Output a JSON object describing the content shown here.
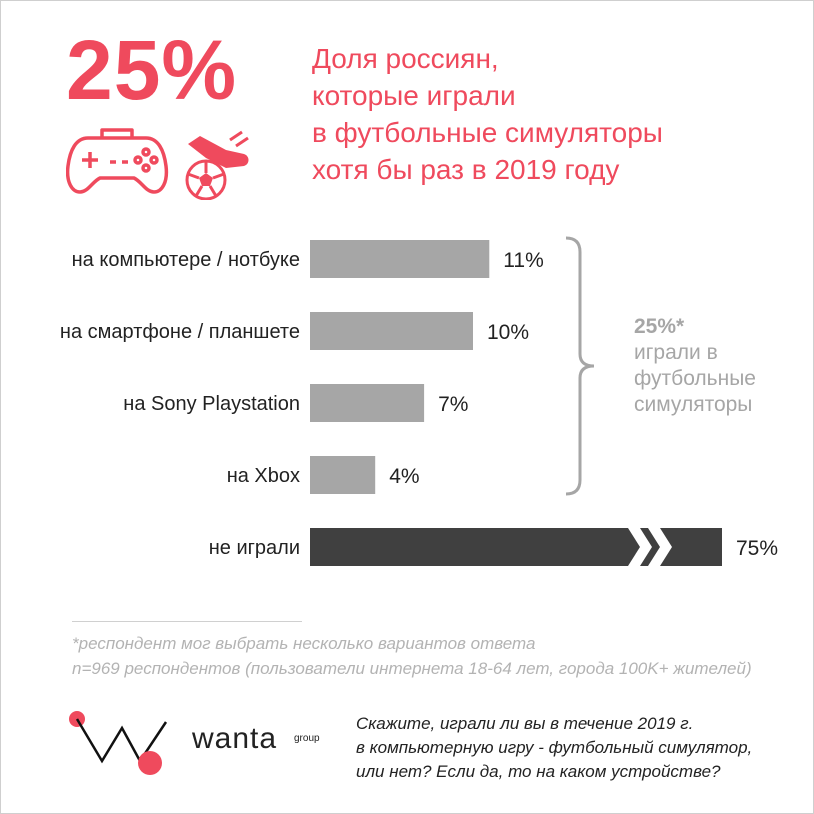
{
  "header": {
    "big_percent": "25%",
    "title_lines": [
      "Доля россиян,",
      "которые играли",
      "в футбольные симуляторы",
      "хотя бы раз в 2019 году"
    ]
  },
  "icons": [
    "gamepad-icon",
    "football-boot-icon",
    "soccer-ball-icon"
  ],
  "colors": {
    "accent": "#ef4a5d",
    "bar_gray": "#a6a6a6",
    "bar_dark": "#404040",
    "note_gray": "#a6a6a6"
  },
  "chart_data": {
    "type": "bar",
    "orientation": "horizontal",
    "categories": [
      "на компьютере / нотбуке",
      "на смартфоне / планшете",
      "на Sony Playstation",
      "на Xbox",
      "не играли"
    ],
    "values": [
      11,
      10,
      7,
      4,
      75
    ],
    "value_labels": [
      "11%",
      "10%",
      "7%",
      "4%",
      "75%"
    ],
    "value_unit": "%",
    "axis_break_on_last_bar": true,
    "bracket_note": {
      "value": "25%*",
      "lines": [
        "играли в",
        "футбольные",
        "симуляторы"
      ]
    }
  },
  "footnote": {
    "lines": [
      "*респондент мог выбрать несколько вариантов ответа",
      "n=969 респондентов (пользователи интернета 18-64 лет, города 100K+ жителей)"
    ]
  },
  "brand": {
    "name": "wanta",
    "suffix": "group"
  },
  "question": {
    "lines": [
      "Скажите, играли ли вы в течение 2019 г.",
      "в компьютерную игру - футбольный симулятор,",
      "или нет? Если да, то на каком устройстве?"
    ]
  }
}
